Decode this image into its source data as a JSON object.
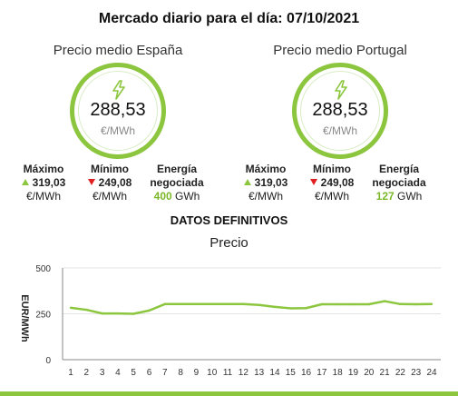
{
  "page": {
    "title": "Mercado diario para el día: 07/10/2021"
  },
  "panels": {
    "spain": {
      "title": "Precio medio España",
      "price": "288,53",
      "unit": "€/MWh",
      "max_label": "Máximo",
      "max_value": "319,03",
      "max_unit": "€/MWh",
      "min_label": "Mínimo",
      "min_value": "249,08",
      "min_unit": "€/MWh",
      "energy_label_1": "Energía",
      "energy_label_2": "negociada",
      "energy_value": "400",
      "energy_unit": "GWh"
    },
    "portugal": {
      "title": "Precio medio Portugal",
      "price": "288,53",
      "unit": "€/MWh",
      "max_label": "Máximo",
      "max_value": "319,03",
      "max_unit": "€/MWh",
      "min_label": "Mínimo",
      "min_value": "249,08",
      "min_unit": "€/MWh",
      "energy_label_1": "Energía",
      "energy_label_2": "negociada",
      "energy_value": "127",
      "energy_unit": "GWh"
    }
  },
  "section": {
    "title": "DATOS DEFINITIVOS"
  },
  "colors": {
    "accent": "#8cc63f",
    "down": "#e02020",
    "line": "#8cc63f"
  },
  "icons": {
    "gauge": "lightning-bolt-icon",
    "up": "triangle-up-icon",
    "down": "triangle-down-icon"
  },
  "chart_data": {
    "type": "line",
    "title": "Precio",
    "ylabel": "EUR/MWh",
    "xlabel": "",
    "ylim": [
      0,
      500
    ],
    "yticks": [
      0,
      250,
      500
    ],
    "grid": "horizontal",
    "categories": [
      "1",
      "2",
      "3",
      "4",
      "5",
      "6",
      "7",
      "8",
      "9",
      "10",
      "11",
      "12",
      "13",
      "14",
      "15",
      "16",
      "17",
      "18",
      "19",
      "20",
      "21",
      "22",
      "23",
      "24"
    ],
    "series": [
      {
        "values": [
          283,
          272,
          252,
          252,
          250,
          268,
          303,
          303,
          303,
          303,
          303,
          303,
          298,
          288,
          280,
          281,
          302,
          302,
          302,
          302,
          319,
          303,
          302,
          303
        ]
      }
    ]
  }
}
